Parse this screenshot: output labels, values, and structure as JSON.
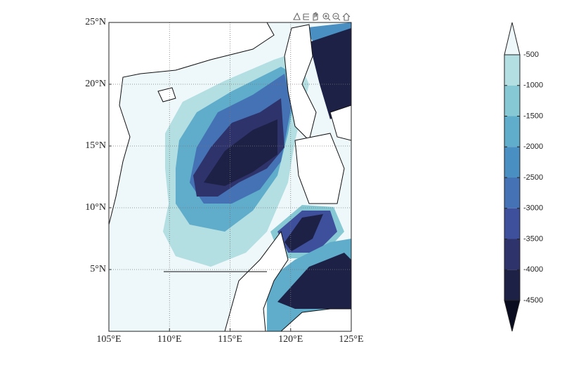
{
  "map": {
    "type": "contourf",
    "xlim": [
      105,
      125
    ],
    "ylim": [
      0,
      25
    ],
    "xticks": [
      {
        "value": 105,
        "label": "105°E"
      },
      {
        "value": 110,
        "label": "110°E"
      },
      {
        "value": 115,
        "label": "115°E"
      },
      {
        "value": 120,
        "label": "120°E"
      },
      {
        "value": 125,
        "label": "125°E"
      }
    ],
    "yticks": [
      {
        "value": 5,
        "label": "5°N"
      },
      {
        "value": 10,
        "label": "10°N"
      },
      {
        "value": 15,
        "label": "15°N"
      },
      {
        "value": 20,
        "label": "20°N"
      },
      {
        "value": 25,
        "label": "25°N"
      }
    ],
    "grid": true,
    "colorbar": {
      "ticks": [
        -500,
        -1000,
        -1500,
        -2000,
        -2500,
        -3000,
        -3500,
        -4000,
        -4500
      ],
      "colors": [
        "#eef8fa",
        "#b3dfe2",
        "#86c8d3",
        "#5faccb",
        "#4a8fc2",
        "#4472b4",
        "#3e4f9c",
        "#2f336c",
        "#1e2146",
        "#0a0c1f"
      ]
    }
  }
}
